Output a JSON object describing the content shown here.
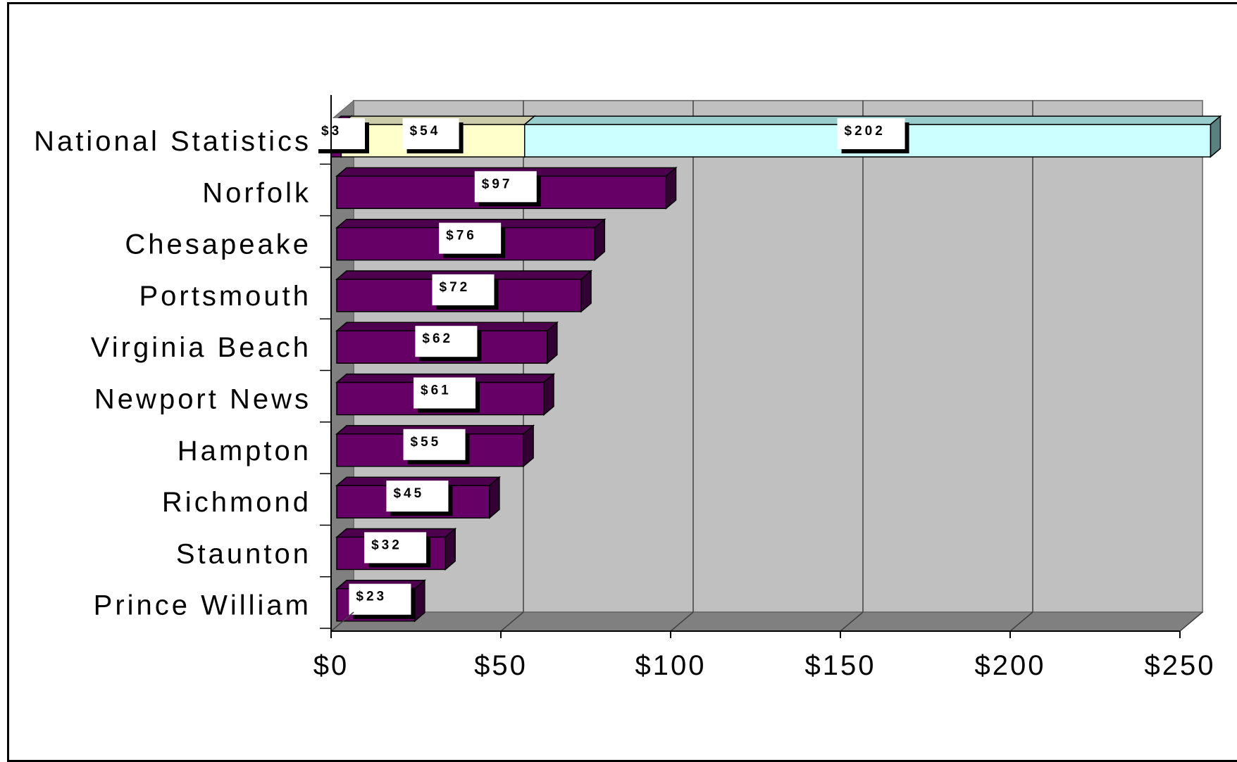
{
  "chart_data": {
    "type": "bar",
    "orientation": "horizontal",
    "three_d": true,
    "categories": [
      "National Statistics",
      "Norfolk",
      "Chesapeake",
      "Portsmouth",
      "Virginia Beach",
      "Newport News",
      "Hampton",
      "Richmond",
      "Staunton",
      "Prince William"
    ],
    "stacked_row": {
      "category": "National Statistics",
      "segments": [
        {
          "value": 3,
          "label": "$3",
          "color": "#660066"
        },
        {
          "value": 54,
          "label": "$54",
          "color": "#ffffcc"
        },
        {
          "value": 202,
          "label": "$202",
          "color": "#ccffff"
        }
      ]
    },
    "series": [
      {
        "color": "#660066",
        "values": [
          null,
          97,
          76,
          72,
          62,
          61,
          55,
          45,
          32,
          23
        ],
        "labels": [
          "",
          "$97",
          "$76",
          "$72",
          "$62",
          "$61",
          "$55",
          "$45",
          "$32",
          "$23"
        ]
      }
    ],
    "x_ticks": [
      "$0",
      "$50",
      "$100",
      "$150",
      "$200",
      "$250"
    ],
    "xlim": [
      0,
      250
    ],
    "grid": true,
    "legend": "none",
    "colors": {
      "wall": "#c0c0c0",
      "floor": "#808080",
      "bar": "#660066",
      "gridline": "#404040"
    }
  }
}
